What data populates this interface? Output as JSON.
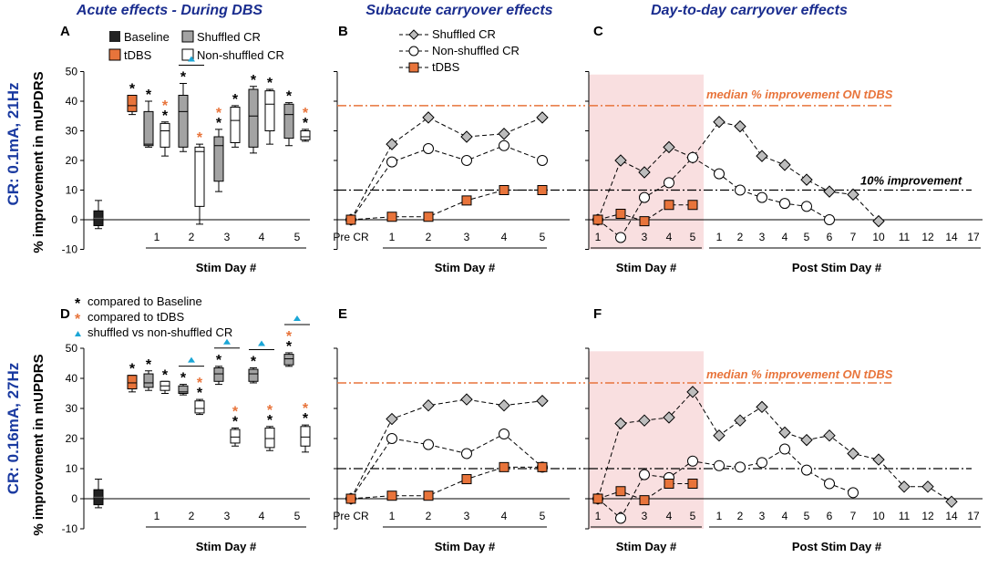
{
  "colors": {
    "orange": "#e8743b",
    "grey": "#a3a3a3",
    "black": "#222222",
    "blue": "#1ba6d6",
    "shade": "#f9dfe0",
    "header": "#1a2d8f"
  },
  "headers": {
    "acute": "Acute effects - During DBS",
    "subacute": "Subacute carryover effects",
    "daytoday": "Day-to-day carryover effects"
  },
  "rows": [
    {
      "label": "CR: 0.1mA, 21Hz",
      "ylabel": "% improvement in mUPDRS"
    },
    {
      "label": "CR: 0.16mA, 27Hz",
      "ylabel": "% improvement in mUPDRS"
    }
  ],
  "panel_letters": [
    "A",
    "B",
    "C",
    "D",
    "E",
    "F"
  ],
  "legends": {
    "acute": [
      "Baseline",
      "tDBS",
      "Shuffled CR",
      "Non-shuffled CR"
    ],
    "lines": [
      "Shuffled CR",
      "Non-shuffled CR",
      "tDBS"
    ],
    "stars": [
      "compared to Baseline",
      "compared to tDBS",
      "shuffled vs non-shuffled CR"
    ]
  },
  "annotations": {
    "median": "median % improvement ON tDBS",
    "ten": "10% improvement"
  },
  "axis_titles": {
    "stim_day": "Stim Day #",
    "post_stim_day": "Post Stim Day #"
  },
  "pre_cr": "Pre CR",
  "chart_data": [
    {
      "panel": "A",
      "type": "box",
      "ylim": [
        -10,
        50
      ],
      "yticks": [
        -10,
        0,
        10,
        20,
        30,
        40,
        50
      ],
      "title": "Acute effects - During DBS",
      "xlabel": "Stim Day #",
      "ylabel": "% improvement in mUPDRS",
      "xticklabels": [
        "1",
        "2",
        "3",
        "4",
        "5"
      ],
      "groups": [
        {
          "label": "Baseline",
          "boxes": [
            {
              "series": "Baseline",
              "min": -3,
              "q1": -2,
              "median": 0.5,
              "q3": 3,
              "max": 6.5,
              "stars": ""
            }
          ]
        },
        {
          "label": "tDBS",
          "boxes": [
            {
              "series": "tDBS",
              "min": 35.5,
              "q1": 36.5,
              "median": 38.5,
              "q3": 42,
              "max": 42,
              "stars": "k"
            }
          ]
        },
        {
          "label": "1",
          "boxes": [
            {
              "series": "Shuffled CR",
              "min": 24.5,
              "q1": 25,
              "median": 25.5,
              "q3": 36.5,
              "max": 40,
              "stars": "k"
            },
            {
              "series": "Non-shuffled CR",
              "min": 21.5,
              "q1": 24.5,
              "median": 30,
              "q3": 32.5,
              "max": 33,
              "stars": "ok"
            }
          ]
        },
        {
          "label": "2",
          "boxes": [
            {
              "series": "Shuffled CR",
              "min": 23,
              "q1": 24.5,
              "median": 36.5,
              "q3": 42,
              "max": 46,
              "stars": "k"
            },
            {
              "series": "Non-shuffled CR",
              "min": -1.5,
              "q1": 4.5,
              "median": 23,
              "q3": 24.5,
              "max": 25.5,
              "stars": "o"
            }
          ],
          "cmp": true
        },
        {
          "label": "3",
          "boxes": [
            {
              "series": "Shuffled CR",
              "min": 9.5,
              "q1": 13,
              "median": 25,
              "q3": 28,
              "max": 30.5,
              "stars": "ok"
            },
            {
              "series": "Non-shuffled CR",
              "min": 24.5,
              "q1": 26,
              "median": 33.5,
              "q3": 38,
              "max": 38.5,
              "stars": "k"
            }
          ]
        },
        {
          "label": "4",
          "boxes": [
            {
              "series": "Shuffled CR",
              "min": 22.5,
              "q1": 24.5,
              "median": 35,
              "q3": 44,
              "max": 45,
              "stars": "k"
            },
            {
              "series": "Non-shuffled CR",
              "min": 25.5,
              "q1": 30,
              "median": 39,
              "q3": 43.5,
              "max": 44,
              "stars": "k"
            }
          ]
        },
        {
          "label": "5",
          "boxes": [
            {
              "series": "Shuffled CR",
              "min": 25,
              "q1": 27.5,
              "median": 35.5,
              "q3": 39,
              "max": 39.5,
              "stars": "k"
            },
            {
              "series": "Non-shuffled CR",
              "min": 26.5,
              "q1": 27,
              "median": 28,
              "q3": 30,
              "max": 30.5,
              "stars": "ok"
            }
          ]
        }
      ]
    },
    {
      "panel": "B",
      "type": "line",
      "ylim": [
        -10,
        50
      ],
      "title": "Subacute carryover effects",
      "xlabel": "Stim Day #",
      "x": [
        "Pre CR",
        "1",
        "2",
        "3",
        "4",
        "5"
      ],
      "median_tDBS": 38.5,
      "threshold": 10,
      "series": [
        {
          "name": "Shuffled CR",
          "values": [
            0,
            25.5,
            34.5,
            28,
            29,
            34.5
          ]
        },
        {
          "name": "Non-shuffled CR",
          "values": [
            0,
            19.5,
            24,
            20,
            25,
            20
          ]
        },
        {
          "name": "tDBS",
          "values": [
            0,
            1,
            1,
            6.5,
            10,
            10
          ]
        }
      ]
    },
    {
      "panel": "C",
      "type": "line",
      "ylim": [
        -10,
        50
      ],
      "title": "Day-to-day carryover effects",
      "xlabels": [
        "Stim Day #",
        "Post Stim Day #"
      ],
      "stim_days": [
        "1",
        "2",
        "3",
        "4",
        "5"
      ],
      "post_days": [
        "1",
        "2",
        "3",
        "4",
        "5",
        "6",
        "7",
        "10",
        "11",
        "12",
        "14",
        "17"
      ],
      "median_tDBS": 38.5,
      "threshold": 10,
      "series": [
        {
          "name": "Shuffled CR",
          "stim": [
            0,
            20,
            16,
            24.5,
            21
          ],
          "post": [
            33,
            31.5,
            21.5,
            18.5,
            13.5,
            9.5,
            8.5,
            -0.5
          ]
        },
        {
          "name": "Non-shuffled CR",
          "stim": [
            0,
            -6,
            7.5,
            12.5,
            21
          ],
          "post": [
            15.5,
            10,
            7.5,
            5.5,
            4.5,
            0
          ]
        },
        {
          "name": "tDBS",
          "stim": [
            0,
            2,
            -0.5,
            5,
            5
          ],
          "post": []
        }
      ]
    },
    {
      "panel": "D",
      "type": "box",
      "ylim": [
        -10,
        50
      ],
      "yticks": [
        -10,
        0,
        10,
        20,
        30,
        40,
        50
      ],
      "xlabel": "Stim Day #",
      "ylabel": "% improvement in mUPDRS",
      "xticklabels": [
        "1",
        "2",
        "3",
        "4",
        "5"
      ],
      "groups": [
        {
          "label": "Baseline",
          "boxes": [
            {
              "series": "Baseline",
              "min": -3,
              "q1": -2,
              "median": 0.5,
              "q3": 3,
              "max": 6.5,
              "stars": ""
            }
          ]
        },
        {
          "label": "tDBS",
          "boxes": [
            {
              "series": "tDBS",
              "min": 35.5,
              "q1": 36.5,
              "median": 38.5,
              "q3": 41,
              "max": 41,
              "stars": "k"
            }
          ]
        },
        {
          "label": "1",
          "boxes": [
            {
              "series": "Shuffled CR",
              "min": 36,
              "q1": 37,
              "median": 38.5,
              "q3": 41.5,
              "max": 42.5,
              "stars": "k"
            },
            {
              "series": "Non-shuffled CR",
              "min": 35,
              "q1": 36,
              "median": 37.5,
              "q3": 39,
              "max": 39,
              "stars": "k"
            }
          ]
        },
        {
          "label": "2",
          "boxes": [
            {
              "series": "Shuffled CR",
              "min": 34.5,
              "q1": 35,
              "median": 35.5,
              "q3": 37.5,
              "max": 38,
              "stars": "k"
            },
            {
              "series": "Non-shuffled CR",
              "min": 28,
              "q1": 28.5,
              "median": 30,
              "q3": 32.5,
              "max": 33,
              "stars": "ok"
            }
          ],
          "cmp": true
        },
        {
          "label": "3",
          "boxes": [
            {
              "series": "Shuffled CR",
              "min": 38,
              "q1": 39,
              "median": 41.5,
              "q3": 43.5,
              "max": 44,
              "stars": "k"
            },
            {
              "series": "Non-shuffled CR",
              "min": 17.5,
              "q1": 18.5,
              "median": 20.5,
              "q3": 23,
              "max": 23.5,
              "stars": "ok"
            }
          ],
          "cmp": true
        },
        {
          "label": "4",
          "boxes": [
            {
              "series": "Shuffled CR",
              "min": 38.5,
              "q1": 39,
              "median": 41.5,
              "q3": 43,
              "max": 43.5,
              "stars": "k"
            },
            {
              "series": "Non-shuffled CR",
              "min": 16,
              "q1": 17,
              "median": 20,
              "q3": 23.5,
              "max": 24,
              "stars": "ok"
            }
          ],
          "cmp": true
        },
        {
          "label": "5",
          "boxes": [
            {
              "series": "Shuffled CR",
              "min": 44,
              "q1": 44.5,
              "median": 46.5,
              "q3": 48,
              "max": 48.5,
              "stars": "ok"
            },
            {
              "series": "Non-shuffled CR",
              "min": 15.5,
              "q1": 17.5,
              "median": 20.5,
              "q3": 24,
              "max": 24.5,
              "stars": "ok"
            }
          ],
          "cmp": true
        }
      ]
    },
    {
      "panel": "E",
      "type": "line",
      "ylim": [
        -10,
        50
      ],
      "xlabel": "Stim Day #",
      "x": [
        "Pre CR",
        "1",
        "2",
        "3",
        "4",
        "5"
      ],
      "median_tDBS": 38.5,
      "threshold": 10,
      "series": [
        {
          "name": "Shuffled CR",
          "values": [
            0,
            26.5,
            31,
            33,
            31,
            32.5
          ]
        },
        {
          "name": "Non-shuffled CR",
          "values": [
            0,
            20,
            18,
            15,
            21.5,
            10.5
          ]
        },
        {
          "name": "tDBS",
          "values": [
            0,
            1,
            1,
            6.5,
            10.5,
            10.5
          ]
        }
      ]
    },
    {
      "panel": "F",
      "type": "line",
      "ylim": [
        -10,
        50
      ],
      "xlabels": [
        "Stim Day #",
        "Post Stim Day #"
      ],
      "stim_days": [
        "1",
        "2",
        "3",
        "4",
        "5"
      ],
      "post_days": [
        "1",
        "2",
        "3",
        "4",
        "5",
        "6",
        "7",
        "10",
        "11",
        "12",
        "14",
        "17"
      ],
      "median_tDBS": 38.5,
      "threshold": 10,
      "series": [
        {
          "name": "Shuffled CR",
          "stim": [
            0,
            25,
            26,
            27,
            35.5
          ],
          "post": [
            21,
            26,
            30.5,
            22,
            19.5,
            21,
            15,
            13,
            4,
            4,
            -1
          ]
        },
        {
          "name": "Non-shuffled CR",
          "stim": [
            0,
            -6.5,
            8,
            7,
            12.5
          ],
          "post": [
            11,
            10.5,
            12,
            16.5,
            9.5,
            5,
            2
          ]
        },
        {
          "name": "tDBS",
          "stim": [
            0,
            2.5,
            -0.5,
            5,
            5
          ],
          "post": []
        }
      ]
    }
  ]
}
